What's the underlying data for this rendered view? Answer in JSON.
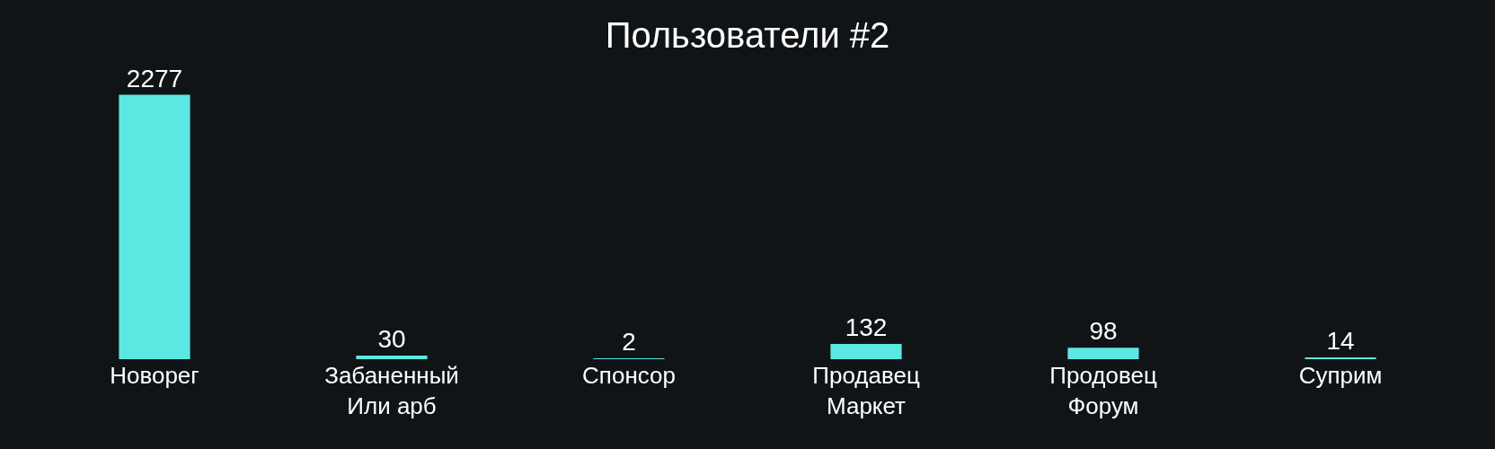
{
  "chart_data": {
    "type": "bar",
    "title": "Пользователи #2",
    "categories": [
      "Новорег",
      "Забаненный\nИли арб",
      "Спонсор",
      "Продавец\nМаркет",
      "Продовец\nФорум",
      "Суприм"
    ],
    "values": [
      2277,
      30,
      2,
      132,
      98,
      14
    ],
    "color": "#5ce8e2",
    "data_labels": true,
    "grid": false,
    "legend": false
  }
}
